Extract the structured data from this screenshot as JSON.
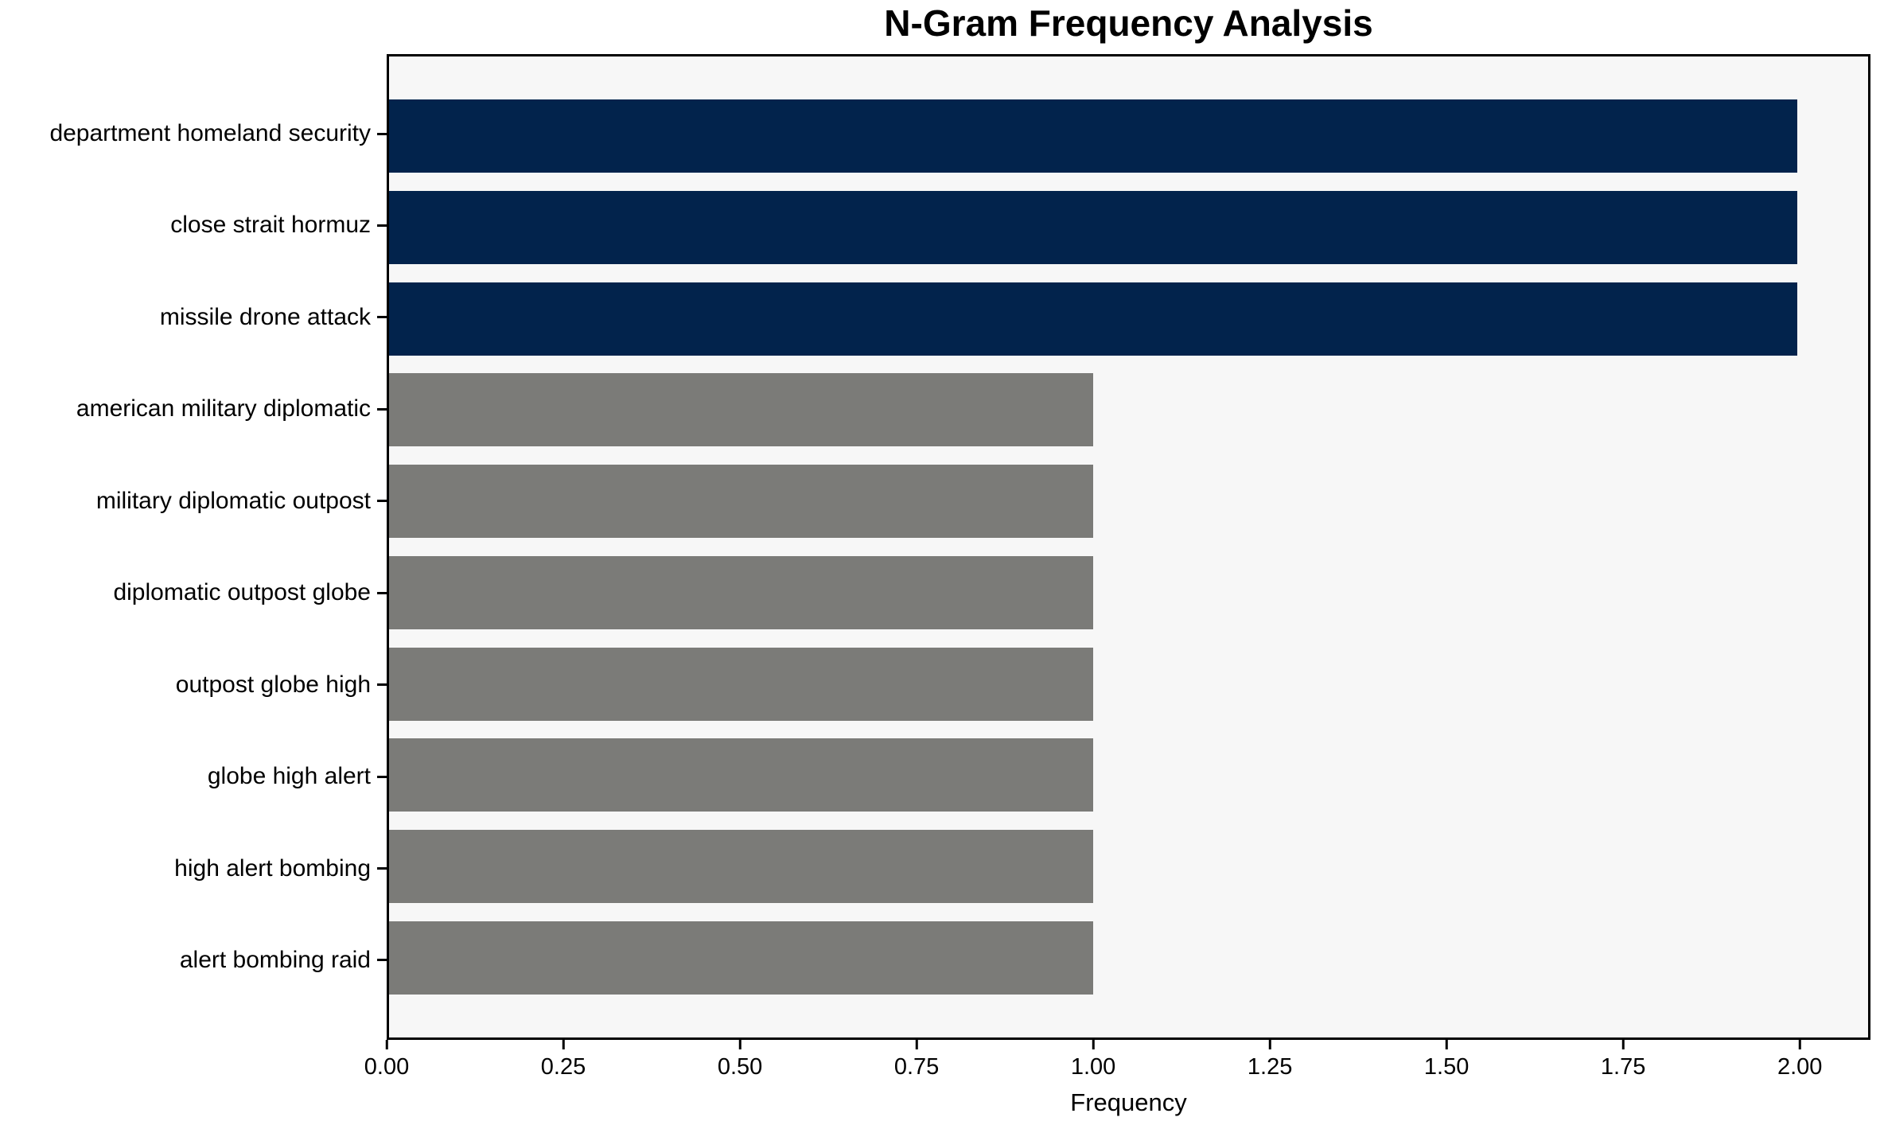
{
  "chart_data": {
    "type": "bar",
    "orientation": "horizontal",
    "title": "N-Gram Frequency Analysis",
    "xlabel": "Frequency",
    "ylabel": "",
    "categories": [
      "department homeland security",
      "close strait hormuz",
      "missile drone attack",
      "american military diplomatic",
      "military diplomatic outpost",
      "diplomatic outpost globe",
      "outpost globe high",
      "globe high alert",
      "high alert bombing",
      "alert bombing raid"
    ],
    "values": [
      2,
      2,
      2,
      1,
      1,
      1,
      1,
      1,
      1,
      1
    ],
    "bar_colors": [
      "#02234c",
      "#02234c",
      "#02234c",
      "#7b7b78",
      "#7b7b78",
      "#7b7b78",
      "#7b7b78",
      "#7b7b78",
      "#7b7b78",
      "#7b7b78"
    ],
    "x_ticks": [
      {
        "value": 0.0,
        "label": "0.00"
      },
      {
        "value": 0.25,
        "label": "0.25"
      },
      {
        "value": 0.5,
        "label": "0.50"
      },
      {
        "value": 0.75,
        "label": "0.75"
      },
      {
        "value": 1.0,
        "label": "1.00"
      },
      {
        "value": 1.25,
        "label": "1.25"
      },
      {
        "value": 1.5,
        "label": "1.50"
      },
      {
        "value": 1.75,
        "label": "1.75"
      },
      {
        "value": 2.0,
        "label": "2.00"
      }
    ],
    "xlim": [
      0,
      2.1
    ],
    "grid": false,
    "legend": null,
    "colors": {
      "bar_high_frequency": "#02234c",
      "bar_low_frequency": "#7b7b78",
      "plot_background": "#f7f7f7",
      "figure_background": "#ffffff",
      "axis_frame": "#000000",
      "text": "#000000"
    }
  }
}
